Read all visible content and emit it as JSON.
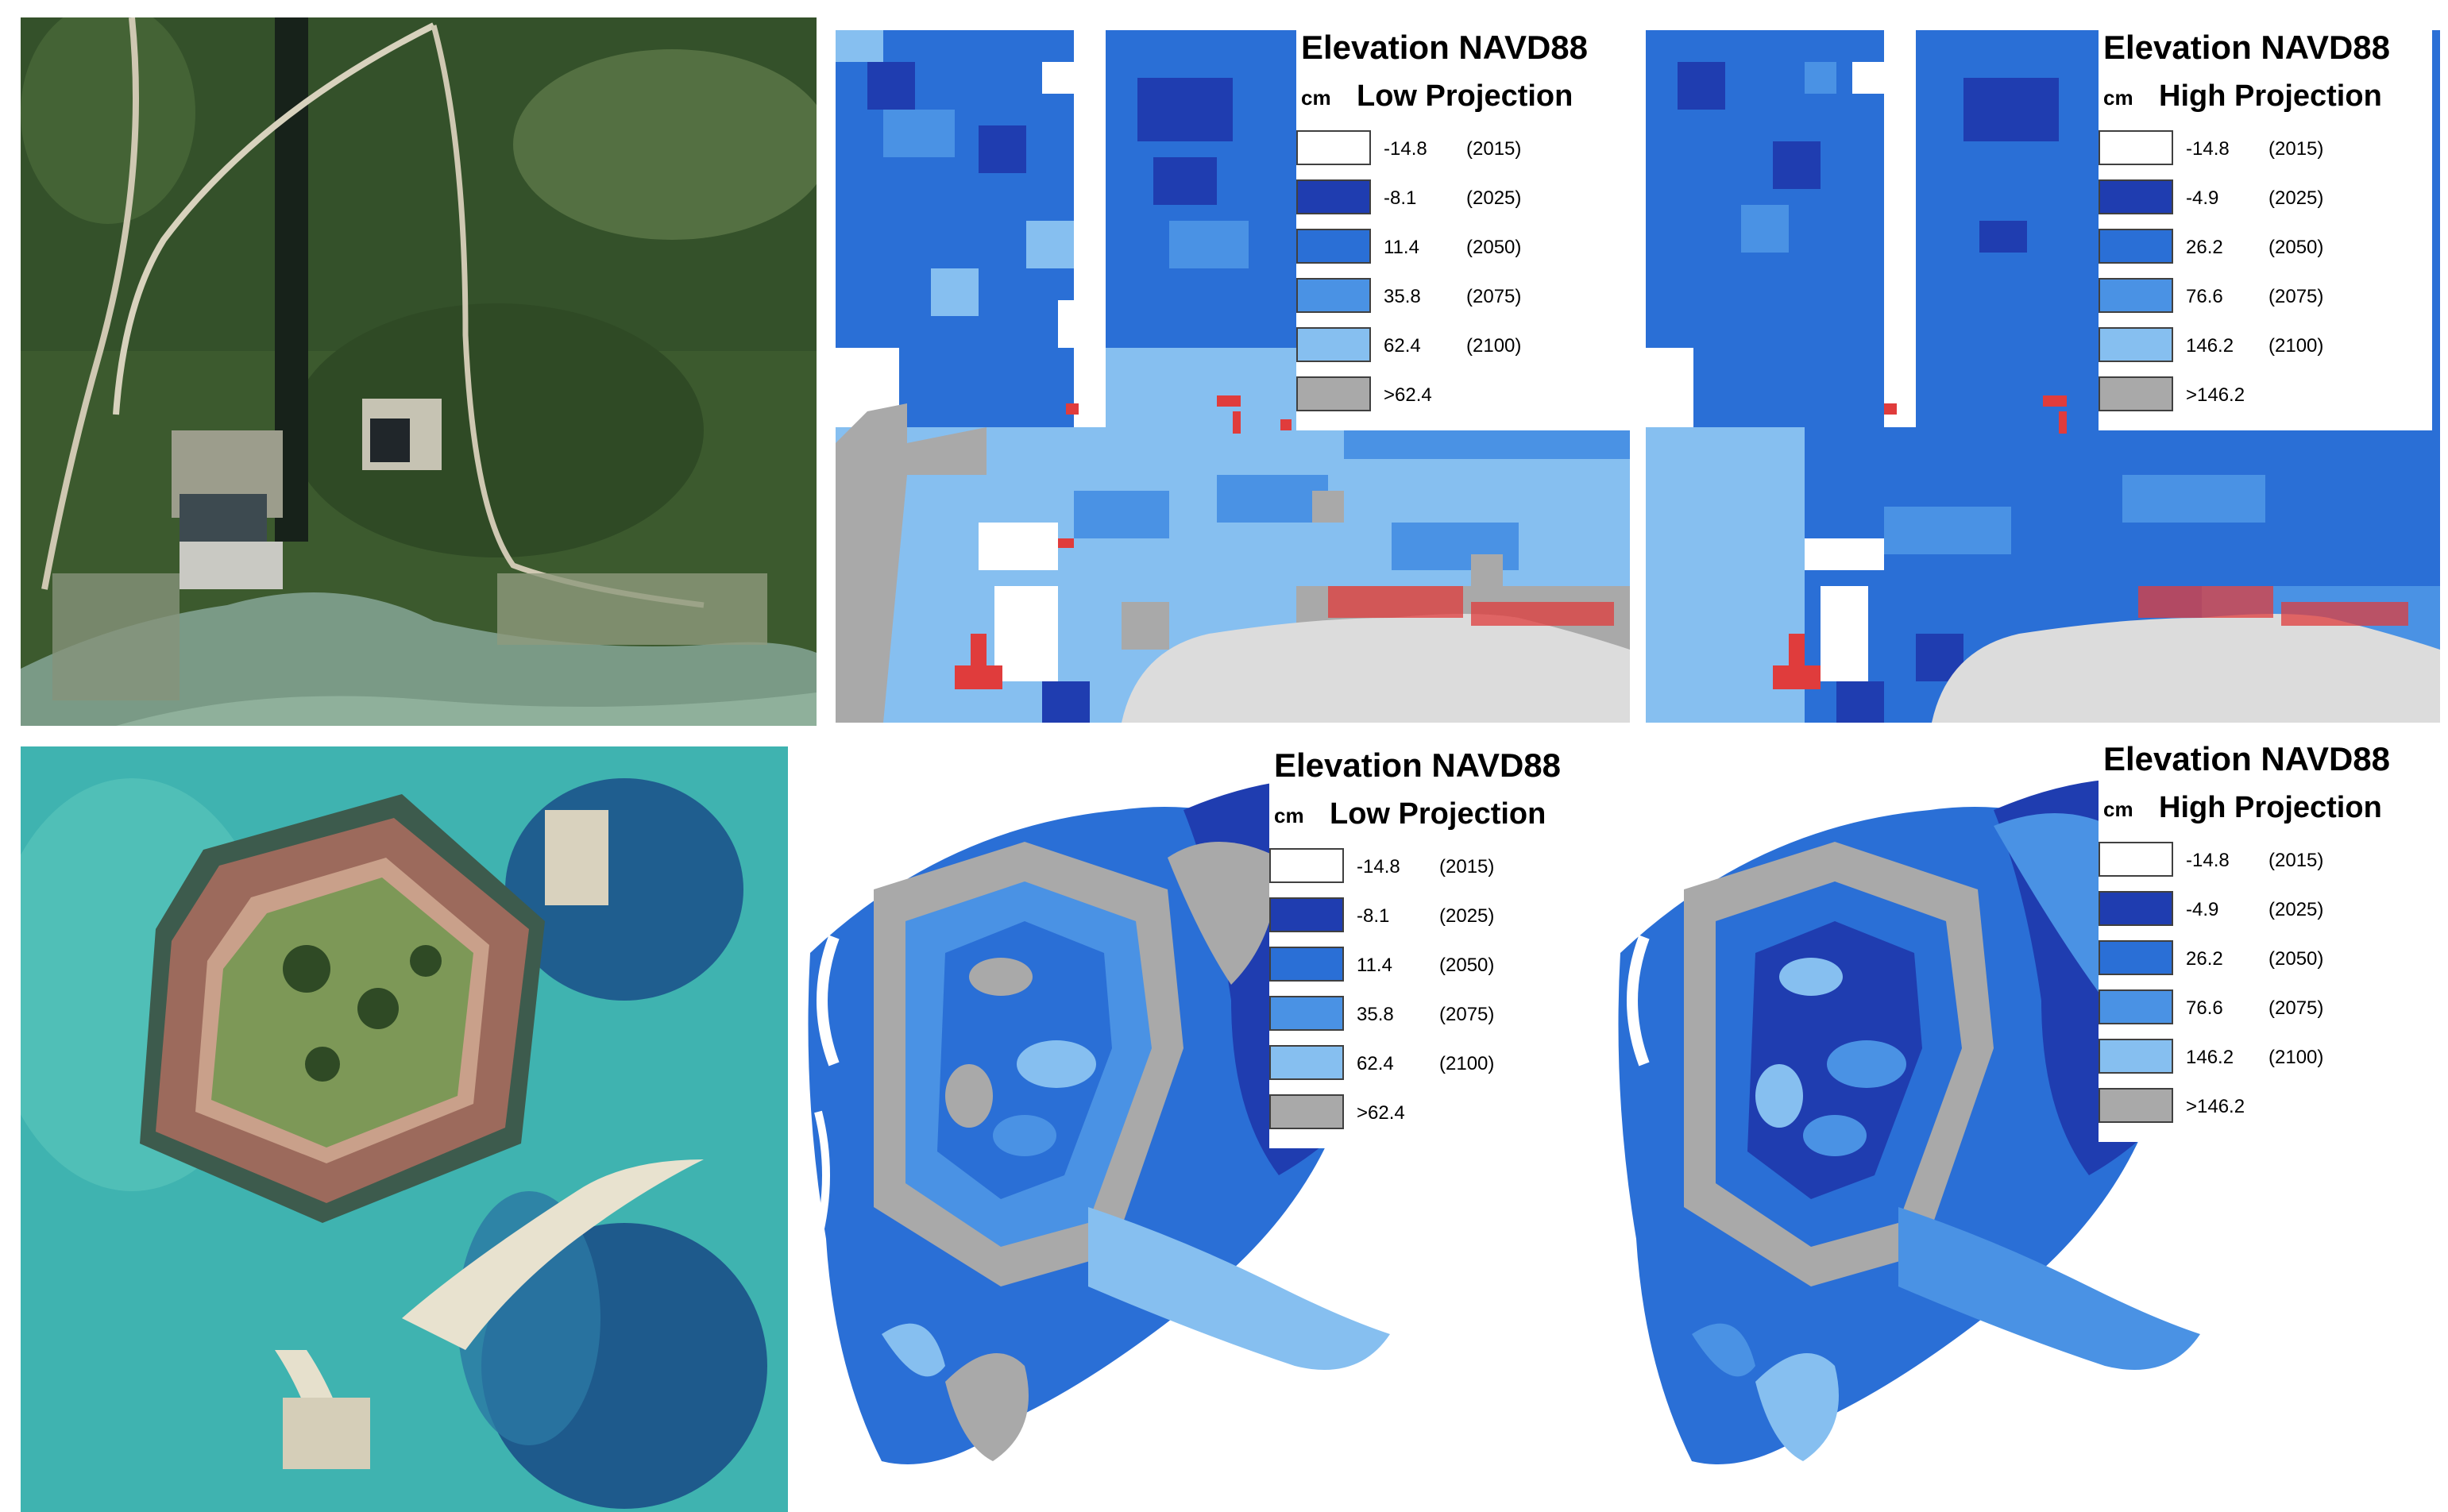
{
  "colors": {
    "white": "#ffffff",
    "dark_blue": "#1f3db0",
    "mid_blue": "#2a6fd6",
    "light_blue": "#4a92e4",
    "pale_blue": "#86bff0",
    "gray": "#a9a9a9",
    "red": "#e03c3c",
    "land_gray": "#dcdcdc"
  },
  "legend_low": {
    "title": "Elevation NAVD88",
    "unit": "cm",
    "projection": "Low Projection",
    "items": [
      {
        "value": "-14.8",
        "year": "(2015)",
        "color": "#ffffff"
      },
      {
        "value": "-8.1",
        "year": "(2025)",
        "color": "#1f3db0"
      },
      {
        "value": "11.4",
        "year": "(2050)",
        "color": "#2a6fd6"
      },
      {
        "value": "35.8",
        "year": "(2075)",
        "color": "#4a92e4"
      },
      {
        "value": "62.4",
        "year": "(2100)",
        "color": "#86bff0"
      },
      {
        "value": ">62.4",
        "year": "",
        "color": "#a9a9a9"
      }
    ]
  },
  "legend_high": {
    "title": "Elevation NAVD88",
    "unit": "cm",
    "projection": "High Projection",
    "items": [
      {
        "value": "-14.8",
        "year": "(2015)",
        "color": "#ffffff"
      },
      {
        "value": "-4.9",
        "year": "(2025)",
        "color": "#1f3db0"
      },
      {
        "value": "26.2",
        "year": "(2050)",
        "color": "#2a6fd6"
      },
      {
        "value": "76.6",
        "year": "(2075)",
        "color": "#4a92e4"
      },
      {
        "value": "146.2",
        "year": "(2100)",
        "color": "#86bff0"
      },
      {
        "value": ">146.2",
        "year": "",
        "color": "#a9a9a9"
      }
    ]
  }
}
